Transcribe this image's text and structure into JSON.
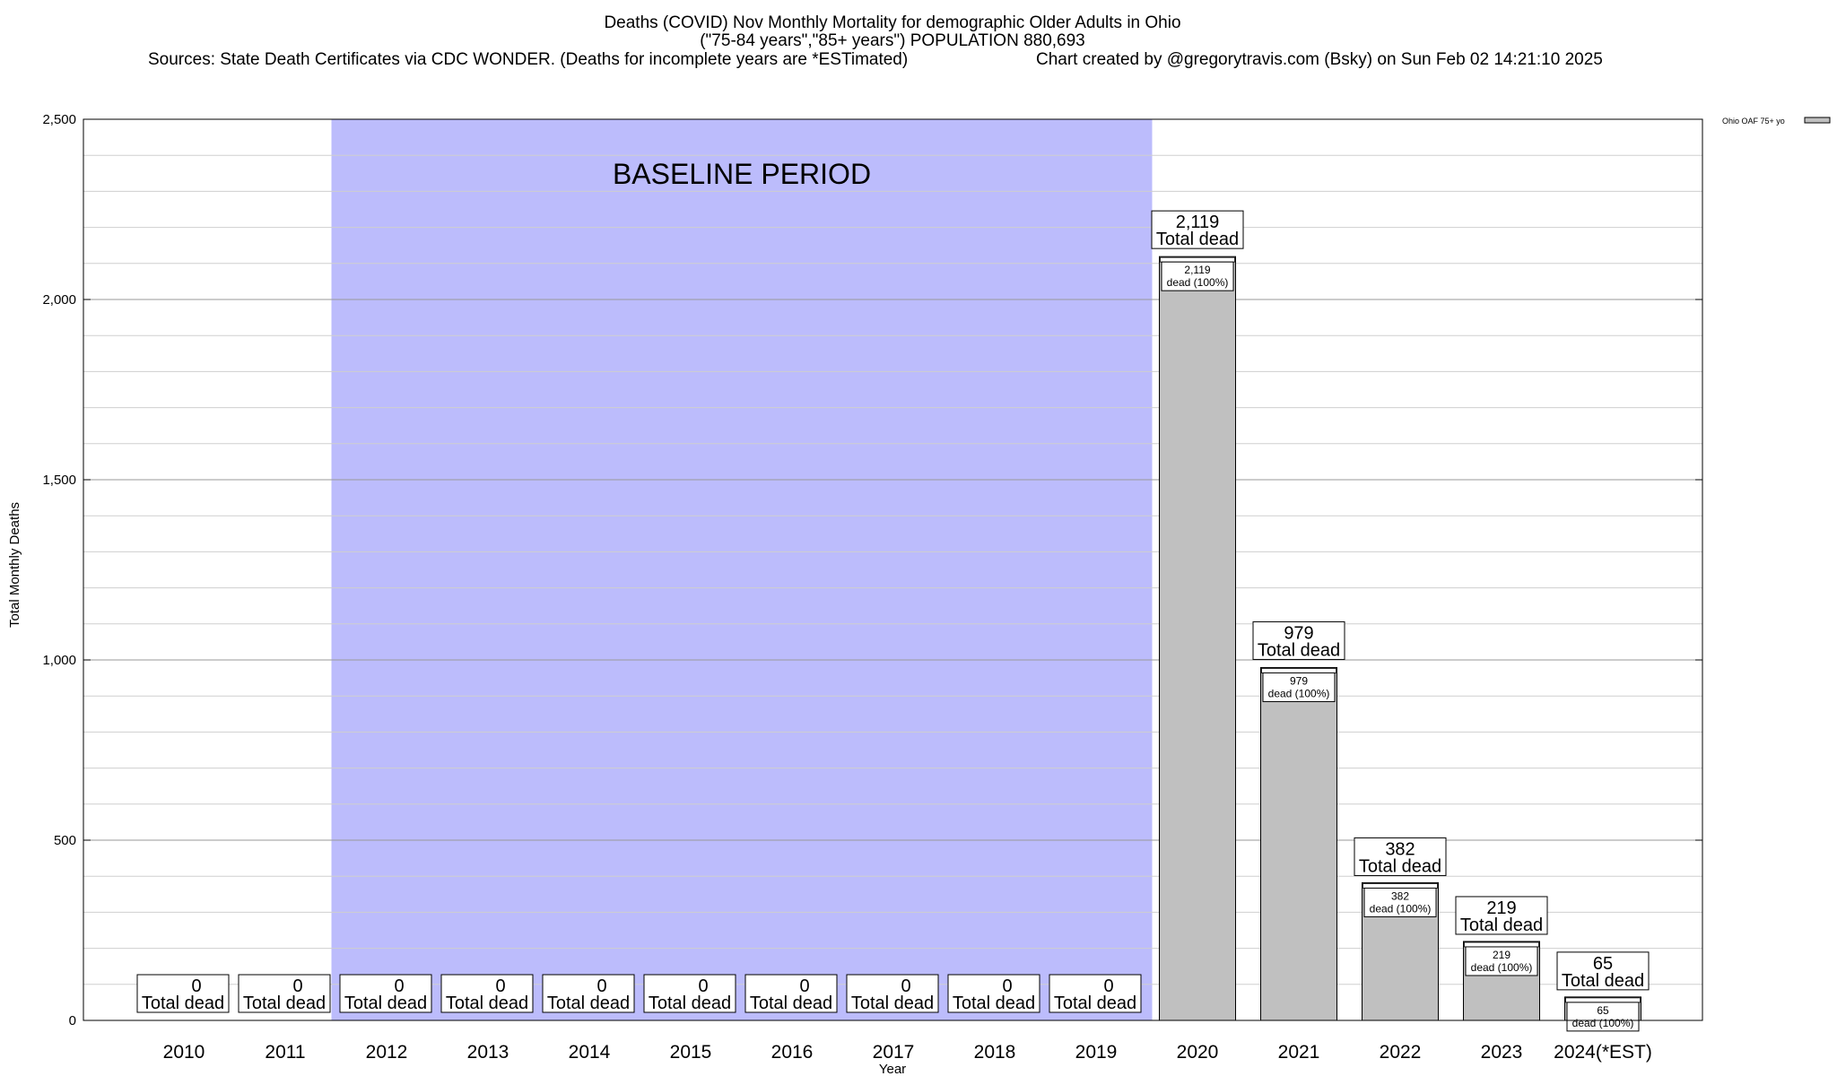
{
  "chart_data": {
    "type": "bar",
    "title_lines": [
      "Deaths (COVID) Nov Monthly Mortality for demographic Older Adults in Ohio",
      "(\"75-84 years\",\"85+ years\") POPULATION 880,693"
    ],
    "source_line": "Sources: State Death Certificates via CDC WONDER. (Deaths for incomplete years are *ESTimated)",
    "credit_line": "Chart created by @gregorytravis.com (Bsky) on Sun Feb 02 14:21:10 2025",
    "xlabel": "Year",
    "ylabel": "Total Monthly Deaths",
    "ylim": [
      0,
      2500
    ],
    "y_ticks": [
      {
        "value": 0,
        "label": "0"
      },
      {
        "value": 500,
        "label": "500"
      },
      {
        "value": 1000,
        "label": "1,000"
      },
      {
        "value": 1500,
        "label": "1,500"
      },
      {
        "value": 2000,
        "label": "2,000"
      },
      {
        "value": 2500,
        "label": "2,500"
      }
    ],
    "grid": true,
    "categories": [
      "2010",
      "2011",
      "2012",
      "2013",
      "2014",
      "2015",
      "2016",
      "2017",
      "2018",
      "2019",
      "2020",
      "2021",
      "2022",
      "2023",
      "2024(*EST)"
    ],
    "series": [
      {
        "name": "Ohio OAF 75+ yo",
        "values": [
          0,
          0,
          0,
          0,
          0,
          0,
          0,
          0,
          0,
          0,
          2119,
          979,
          382,
          219,
          65
        ],
        "color": "#c0c0c0"
      }
    ],
    "total_labels": [
      "0",
      "0",
      "0",
      "0",
      "0",
      "0",
      "0",
      "0",
      "0",
      "0",
      "2,119",
      "979",
      "382",
      "219",
      "65"
    ],
    "total_caption": "Total dead",
    "inner_labels": [
      "",
      "",
      "",
      "",
      "",
      "",
      "",
      "",
      "",
      "",
      "2,119",
      "979",
      "382",
      "219",
      "65"
    ],
    "inner_caption": "dead (100%)",
    "baseline_period": {
      "label": "BASELINE PERIOD",
      "from": "2012",
      "to": "2019",
      "color": "#bcbcfc"
    },
    "legend": {
      "position": "top-right",
      "entries": [
        {
          "name": "Ohio OAF 75+ yo",
          "color": "#c0c0c0"
        }
      ]
    }
  }
}
